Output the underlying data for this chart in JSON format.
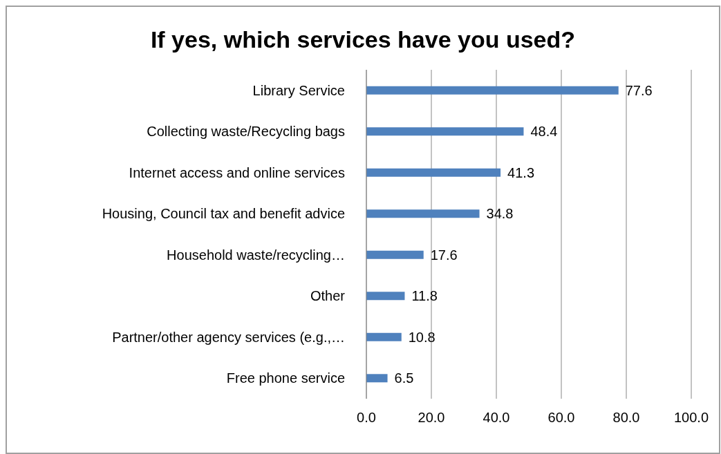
{
  "chart_data": {
    "type": "bar",
    "orientation": "horizontal",
    "title": "If yes, which services have you used?",
    "categories": [
      "Library Service",
      "Collecting waste/Recycling bags",
      "Internet access and online services",
      "Housing, Council tax and benefit advice",
      "Household waste/recycling…",
      "Other",
      "Partner/other agency services (e.g.,…",
      "Free phone service"
    ],
    "values": [
      77.6,
      48.4,
      41.3,
      34.8,
      17.6,
      11.8,
      10.8,
      6.5
    ],
    "color": "#4f81bd",
    "xlim": [
      0,
      100
    ],
    "xticks": [
      {
        "value": 0,
        "label": "0.0"
      },
      {
        "value": 20,
        "label": "20.0"
      },
      {
        "value": 40,
        "label": "40.0"
      },
      {
        "value": 60,
        "label": "60.0"
      },
      {
        "value": 80,
        "label": "80.0"
      },
      {
        "value": 100,
        "label": "100.0"
      }
    ],
    "grid": "x",
    "data_labels": true
  }
}
